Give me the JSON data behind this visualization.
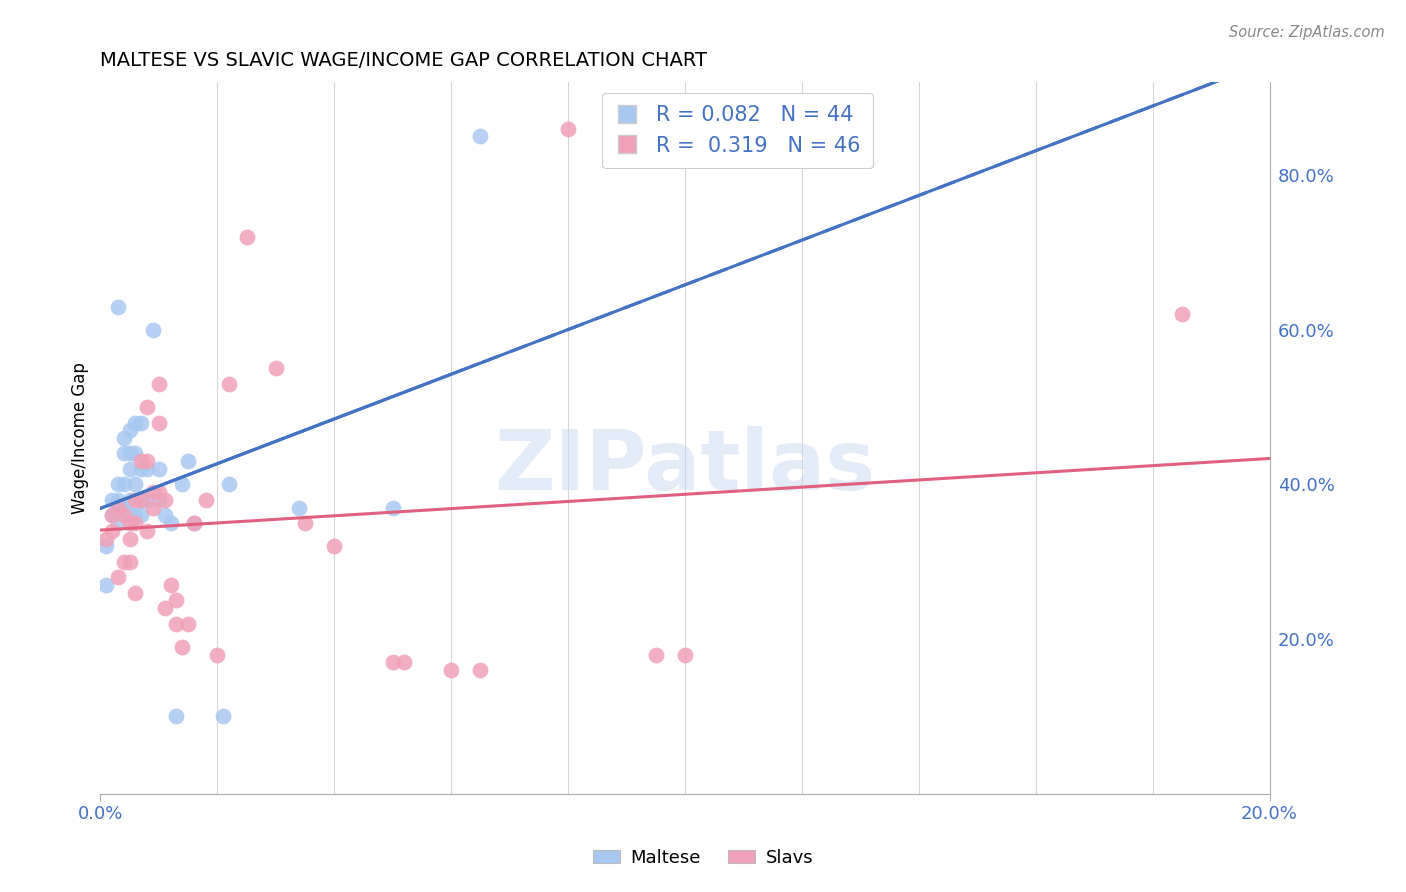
{
  "title": "MALTESE VS SLAVIC WAGE/INCOME GAP CORRELATION CHART",
  "source": "Source: ZipAtlas.com",
  "ylabel": "Wage/Income Gap",
  "watermark": "ZIPatlas",
  "maltese_R": 0.082,
  "maltese_N": 44,
  "slavs_R": 0.319,
  "slavs_N": 46,
  "maltese_color": "#a8c8f0",
  "slavs_color": "#f0a0b8",
  "maltese_line_color": "#4472c4",
  "slavs_line_color": "#e06080",
  "legend_text_color": "#4472c4",
  "axis_color": "#4472c4",
  "xlim": [
    0.0,
    0.2
  ],
  "ylim": [
    0.0,
    0.92
  ],
  "ytick_vals": [
    0.2,
    0.4,
    0.6,
    0.8
  ],
  "ytick_labels": [
    "20.0%",
    "40.0%",
    "60.0%",
    "80.0%"
  ],
  "maltese_x": [
    0.001,
    0.001,
    0.002,
    0.002,
    0.003,
    0.003,
    0.003,
    0.003,
    0.003,
    0.004,
    0.004,
    0.004,
    0.004,
    0.004,
    0.005,
    0.005,
    0.005,
    0.005,
    0.005,
    0.005,
    0.006,
    0.006,
    0.006,
    0.006,
    0.007,
    0.007,
    0.007,
    0.007,
    0.008,
    0.008,
    0.009,
    0.01,
    0.01,
    0.011,
    0.012,
    0.013,
    0.014,
    0.015,
    0.016,
    0.021,
    0.022,
    0.034,
    0.05,
    0.065
  ],
  "maltese_y": [
    0.32,
    0.27,
    0.36,
    0.38,
    0.35,
    0.37,
    0.38,
    0.4,
    0.63,
    0.36,
    0.37,
    0.4,
    0.44,
    0.46,
    0.35,
    0.36,
    0.38,
    0.42,
    0.44,
    0.47,
    0.36,
    0.4,
    0.44,
    0.48,
    0.36,
    0.38,
    0.42,
    0.48,
    0.38,
    0.42,
    0.6,
    0.38,
    0.42,
    0.36,
    0.35,
    0.1,
    0.4,
    0.43,
    0.35,
    0.1,
    0.4,
    0.37,
    0.37,
    0.85
  ],
  "slavs_x": [
    0.001,
    0.002,
    0.002,
    0.003,
    0.003,
    0.004,
    0.004,
    0.005,
    0.005,
    0.005,
    0.006,
    0.006,
    0.006,
    0.007,
    0.007,
    0.008,
    0.008,
    0.008,
    0.009,
    0.009,
    0.01,
    0.01,
    0.01,
    0.011,
    0.011,
    0.012,
    0.013,
    0.013,
    0.014,
    0.015,
    0.016,
    0.018,
    0.02,
    0.022,
    0.025,
    0.03,
    0.035,
    0.04,
    0.05,
    0.052,
    0.06,
    0.065,
    0.08,
    0.095,
    0.1,
    0.185
  ],
  "slavs_y": [
    0.33,
    0.34,
    0.36,
    0.37,
    0.28,
    0.36,
    0.3,
    0.33,
    0.35,
    0.3,
    0.38,
    0.35,
    0.26,
    0.38,
    0.43,
    0.34,
    0.43,
    0.5,
    0.37,
    0.39,
    0.48,
    0.39,
    0.53,
    0.38,
    0.24,
    0.27,
    0.25,
    0.22,
    0.19,
    0.22,
    0.35,
    0.38,
    0.18,
    0.53,
    0.72,
    0.55,
    0.35,
    0.32,
    0.17,
    0.17,
    0.16,
    0.16,
    0.86,
    0.18,
    0.18,
    0.62
  ],
  "maltese_line_x": [
    0.0,
    0.2
  ],
  "slavs_line_x": [
    0.0,
    0.2
  ]
}
